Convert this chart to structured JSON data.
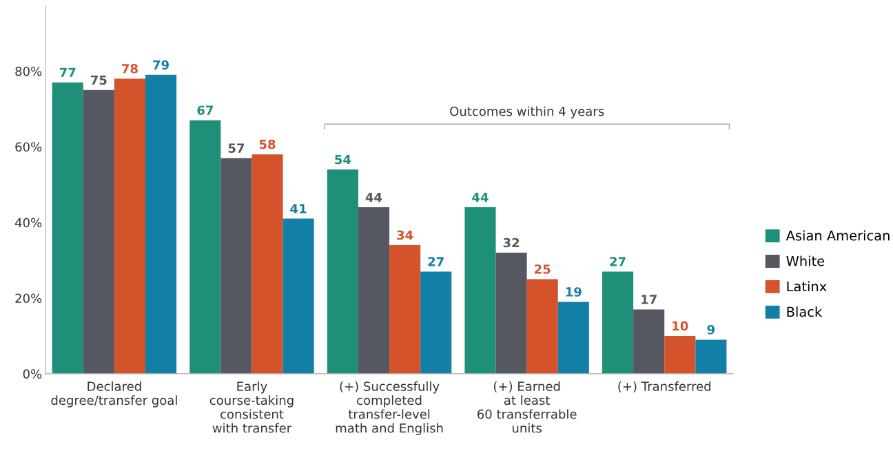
{
  "chart_data": {
    "type": "bar",
    "categories": [
      "Declared\ndegree/transfer goal",
      "Early\ncourse-taking\nconsistent\nwith transfer",
      "(+) Successfully\ncompleted\ntransfer-level\nmath and English",
      "(+) Earned\nat least\n60 transferrable\nunits",
      "(+) Transferred"
    ],
    "series": [
      {
        "name": "Asian American",
        "color": "#1e907a",
        "values": [
          77,
          67,
          54,
          44,
          27
        ]
      },
      {
        "name": "White",
        "color": "#555860",
        "values": [
          75,
          57,
          44,
          32,
          17
        ]
      },
      {
        "name": "Latinx",
        "color": "#d4532b",
        "values": [
          78,
          58,
          34,
          25,
          10
        ]
      },
      {
        "name": "Black",
        "color": "#127fa6",
        "values": [
          79,
          41,
          27,
          19,
          9
        ]
      }
    ],
    "ylim": [
      0,
      97
    ],
    "yticks": [
      {
        "value": 0,
        "label": "0%"
      },
      {
        "value": 20,
        "label": "20%"
      },
      {
        "value": 40,
        "label": "40%"
      },
      {
        "value": 60,
        "label": "60%"
      },
      {
        "value": 80,
        "label": "80%"
      }
    ],
    "data_labels": true,
    "annotations": [
      "Outcomes within 4 years"
    ],
    "legend": "right",
    "grid": false
  }
}
